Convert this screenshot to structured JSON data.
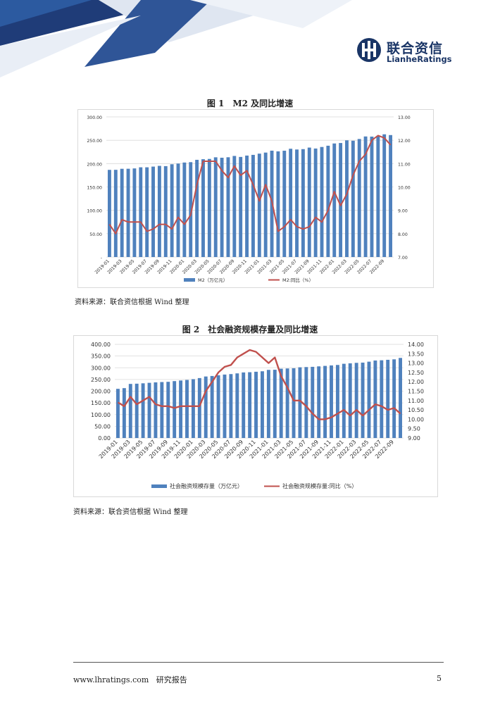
{
  "header": {
    "logo_cn": "联合资信",
    "logo_en": "LianheRatings"
  },
  "figure1": {
    "caption": "图 1　M2 及同比增速",
    "source": "资料来源：联合资信根据 Wind 整理"
  },
  "figure2": {
    "caption": "图 2　社会融资规模存量及同比增速",
    "source": "资料来源：联合资信根据 Wind 整理"
  },
  "footer": {
    "url": "www.lhratings.com",
    "doc_type": "研究报告",
    "page_number": "5"
  },
  "colors": {
    "bar": "#4f81bd",
    "line": "#c0504d",
    "brand": "#1a3566"
  },
  "chart_data": [
    {
      "type": "bar",
      "subtype": "bar+line dual axis",
      "x_tick_labels": [
        "2019-01",
        "2019-03",
        "2019-05",
        "2019-07",
        "2019-09",
        "2019-11",
        "2020-01",
        "2020-03",
        "2020-05",
        "2020-07",
        "2020-09",
        "2020-11",
        "2021-01",
        "2021-03",
        "2021-05",
        "2021-07",
        "2021-09",
        "2021-11",
        "2022-01",
        "2022-03",
        "2022-05",
        "2022-07",
        "2022-09"
      ],
      "y_left_ticks": [
        "300.00",
        "250.00",
        "200.00",
        "150.00",
        "100.00",
        "50.00",
        "-"
      ],
      "y_right_ticks": [
        "13.00",
        "12.00",
        "11.00",
        "10.00",
        "9.00",
        "8.00",
        "7.00"
      ],
      "ylim_left": [
        0,
        300
      ],
      "ylim_right": [
        7,
        13
      ],
      "grid": true,
      "legend_position": "bottom",
      "series": [
        {
          "name": "M2（万亿元）",
          "axis": "left",
          "kind": "bar",
          "values": [
            186.6,
            186.7,
            188.9,
            189.0,
            189.7,
            192.1,
            192.1,
            193.6,
            195.2,
            194.6,
            198.6,
            200.1,
            202.3,
            203.1,
            208.1,
            209.4,
            210.0,
            213.5,
            212.6,
            213.6,
            216.4,
            214.3,
            217.2,
            218.7,
            221.3,
            223.6,
            227.7,
            226.2,
            227.6,
            231.8,
            230.2,
            231.0,
            234.3,
            232.3,
            235.6,
            238.3,
            243.1,
            244.1,
            249.8,
            249.0,
            252.7,
            258.1,
            257.8,
            259.5,
            262.7,
            261.1
          ]
        },
        {
          "name": "M2:同比（%）",
          "axis": "right",
          "kind": "line",
          "values": [
            8.4,
            8.0,
            8.6,
            8.5,
            8.5,
            8.5,
            8.1,
            8.2,
            8.4,
            8.4,
            8.2,
            8.7,
            8.4,
            8.8,
            10.1,
            11.1,
            11.1,
            11.1,
            10.7,
            10.4,
            10.9,
            10.5,
            10.7,
            10.1,
            9.4,
            10.1,
            9.4,
            8.1,
            8.3,
            8.6,
            8.3,
            8.2,
            8.3,
            8.7,
            8.5,
            9.0,
            9.8,
            9.2,
            9.7,
            10.5,
            11.1,
            11.4,
            12.0,
            12.2,
            12.1,
            11.8
          ]
        }
      ]
    },
    {
      "type": "bar",
      "subtype": "bar+line dual axis",
      "x_tick_labels": [
        "2019-01",
        "2019-03",
        "2019-05",
        "2019-07",
        "2019-09",
        "2019-11",
        "2020-01",
        "2020-03",
        "2020-05",
        "2020-07",
        "2020-09",
        "2020-11",
        "2021-01",
        "2021-03",
        "2021-05",
        "2021-07",
        "2021-09",
        "2021-11",
        "2022-01",
        "2022-03",
        "2022-05",
        "2022-07",
        "2022-09"
      ],
      "y_left_ticks": [
        "400.00",
        "350.00",
        "300.00",
        "250.00",
        "200.00",
        "150.00",
        "100.00",
        "50.00",
        "0.00"
      ],
      "y_right_ticks": [
        "14.00",
        "13.50",
        "13.00",
        "12.50",
        "12.00",
        "11.50",
        "11.00",
        "10.50",
        "10.00",
        "9.50",
        "9.00"
      ],
      "ylim_left": [
        0,
        400
      ],
      "ylim_right": [
        9,
        14
      ],
      "grid": true,
      "legend_position": "bottom",
      "series": [
        {
          "name": "社会融资规模存量（万亿元）",
          "axis": "left",
          "kind": "bar",
          "values": [
            210.0,
            213.0,
            231.0,
            232.0,
            233.6,
            235.7,
            237.6,
            239.0,
            240.0,
            243.0,
            245.6,
            248.0,
            251.3,
            256.0,
            262.7,
            264.9,
            268.0,
            271.0,
            273.0,
            276.0,
            280.0,
            281.0,
            283.0,
            285.0,
            291.0,
            291.5,
            296.0,
            297.0,
            298.0,
            302.0,
            303.0,
            304.0,
            306.0,
            308.0,
            310.0,
            312.0,
            317.0,
            319.0,
            321.0,
            322.0,
            326.0,
            331.0,
            332.0,
            334.0,
            336.0,
            342.0
          ]
        },
        {
          "name": "社会融资规模存量:同比（%）",
          "axis": "right",
          "kind": "line",
          "values": [
            10.9,
            10.7,
            11.2,
            10.8,
            11.0,
            11.2,
            10.8,
            10.7,
            10.7,
            10.6,
            10.7,
            10.7,
            10.7,
            10.7,
            11.5,
            12.0,
            12.5,
            12.8,
            12.9,
            13.3,
            13.5,
            13.7,
            13.6,
            13.3,
            13.0,
            13.3,
            12.3,
            11.7,
            11.0,
            11.0,
            10.7,
            10.3,
            10.0,
            10.0,
            10.1,
            10.3,
            10.5,
            10.2,
            10.5,
            10.2,
            10.5,
            10.8,
            10.7,
            10.5,
            10.6,
            10.3
          ]
        }
      ]
    }
  ]
}
